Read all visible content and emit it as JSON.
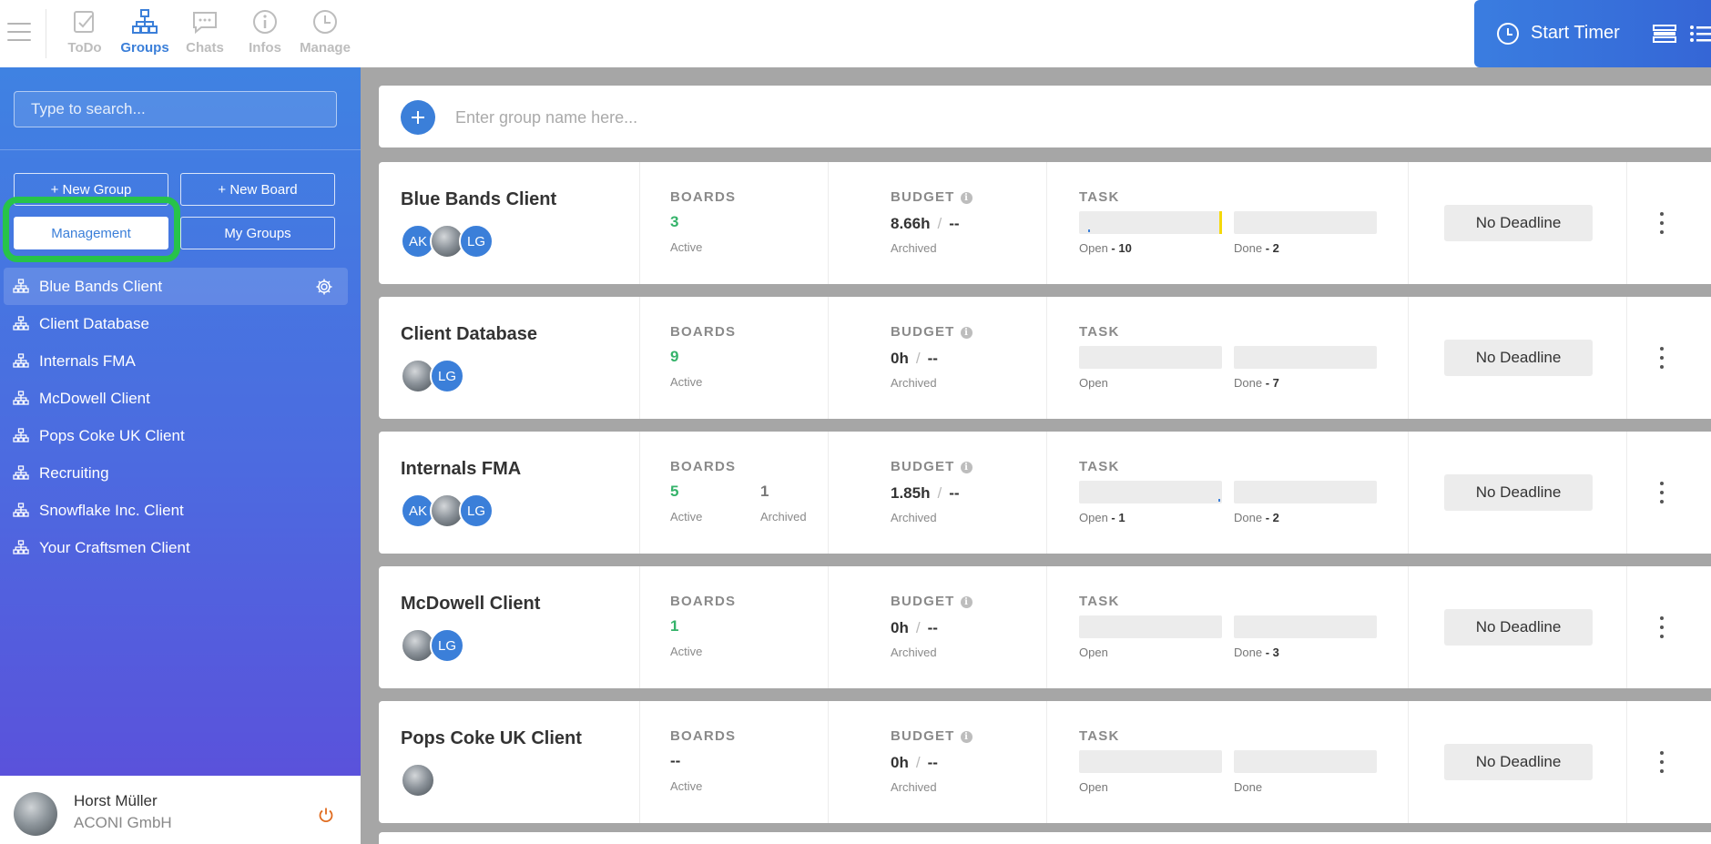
{
  "topbar": {
    "nav": [
      {
        "label": "ToDo",
        "icon": "todo-check-icon"
      },
      {
        "label": "Groups",
        "icon": "groups-hierarchy-icon",
        "active": true
      },
      {
        "label": "Chats",
        "icon": "chat-bubble-icon"
      },
      {
        "label": "Infos",
        "icon": "info-circle-icon"
      },
      {
        "label": "Manage",
        "icon": "clock-icon"
      }
    ],
    "timer_label": "Start Timer"
  },
  "sidebar": {
    "search_placeholder": "Type to search...",
    "new_group_label": "+ New Group",
    "new_board_label": "+ New Board",
    "management_label": "Management",
    "my_groups_label": "My Groups",
    "groups": [
      "Blue Bands Client",
      "Client Database",
      "Internals FMA",
      "McDowell Client",
      "Pops Coke UK Client",
      "Recruiting",
      "Snowflake Inc. Client",
      "Your Craftsmen Client"
    ],
    "selected_group": "Blue Bands Client",
    "user": {
      "name": "Horst Müller",
      "company": "ACONI GmbH"
    }
  },
  "main": {
    "add_placeholder": "Enter group name here...",
    "labels": {
      "boards": "BOARDS",
      "budget": "BUDGET",
      "task": "TASK",
      "active": "Active",
      "archived": "Archived",
      "open": "Open",
      "done": "Done",
      "info_glyph": "i"
    },
    "cards": [
      {
        "name": "Blue Bands Client",
        "avatars": [
          "AK",
          "photo",
          "LG"
        ],
        "boards_active": "3",
        "boards_archived": "",
        "budget": "8.66h",
        "budget_limit": "--",
        "open": " - 10",
        "done": " - 2",
        "open_fill": 0.02,
        "done_marker": true,
        "deadline": "No Deadline"
      },
      {
        "name": "Client Database",
        "avatars": [
          "photo",
          "LG"
        ],
        "boards_active": "9",
        "boards_archived": "",
        "budget": "0h",
        "budget_limit": "--",
        "open": "",
        "done": " - 7",
        "open_fill": 0,
        "done_marker": false,
        "deadline": "No Deadline"
      },
      {
        "name": "Internals FMA",
        "avatars": [
          "AK",
          "photo",
          "LG"
        ],
        "boards_active": "5",
        "boards_archived": "1",
        "budget": "1.85h",
        "budget_limit": "--",
        "open": " - 1",
        "done": " - 2",
        "open_fill": 0.99,
        "done_marker": false,
        "deadline": "No Deadline"
      },
      {
        "name": "McDowell Client",
        "avatars": [
          "photo",
          "LG"
        ],
        "boards_active": "1",
        "boards_archived": "",
        "budget": "0h",
        "budget_limit": "--",
        "open": "",
        "done": " - 3",
        "open_fill": 0,
        "done_marker": false,
        "deadline": "No Deadline"
      },
      {
        "name": "Pops Coke UK Client",
        "avatars": [
          "photo"
        ],
        "boards_active": "--",
        "boards_archived": "",
        "budget": "0h",
        "budget_limit": "--",
        "open": "",
        "done": "",
        "open_fill": 0,
        "done_marker": false,
        "deadline": "No Deadline"
      }
    ]
  },
  "colors": {
    "accent": "#3b7fd9",
    "highlight": "#27c34a",
    "active_count": "#35b36a",
    "marker_yellow": "#f5d90a"
  }
}
